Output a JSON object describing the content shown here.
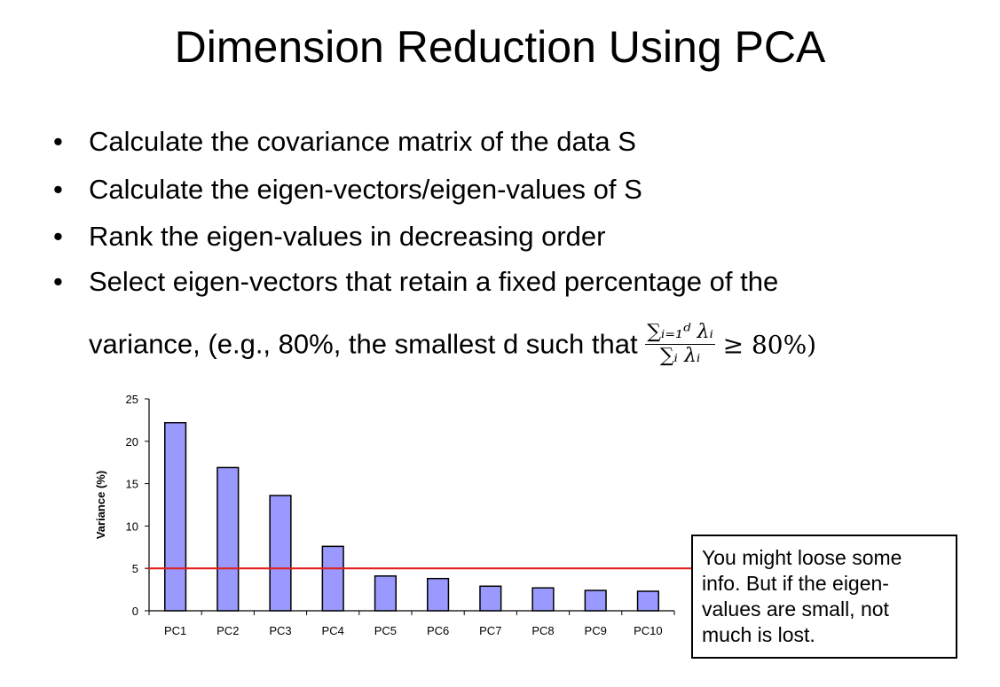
{
  "slide": {
    "title": "Dimension Reduction Using PCA",
    "bullets": [
      "Calculate the covariance matrix of the data S",
      "Calculate the eigen-vectors/eigen-values of S",
      "Rank the eigen-values in decreasing order",
      "Select eigen-vectors that retain a fixed percentage of the"
    ],
    "bullet_symbol": "•",
    "continuation": "variance, (e.g., 80%, the smallest d such that",
    "formula": {
      "numerator": "∑ᵢ₌₁ᵈ λᵢ",
      "denominator": "∑ᵢ λᵢ",
      "relation": "≥ 80%)"
    },
    "note": [
      "You might loose some",
      "info. But if the eigen-",
      "values are small, not",
      "much is lost."
    ]
  },
  "chart_data": {
    "type": "bar",
    "categories": [
      "PC1",
      "PC2",
      "PC3",
      "PC4",
      "PC5",
      "PC6",
      "PC7",
      "PC8",
      "PC9",
      "PC10"
    ],
    "values": [
      22.2,
      16.9,
      13.6,
      7.6,
      4.1,
      3.8,
      2.9,
      2.7,
      2.4,
      2.3
    ],
    "ylabel": "Variance (%)",
    "xlabel": "",
    "ylim": [
      0,
      25
    ],
    "yticks": [
      0,
      5,
      10,
      15,
      20,
      25
    ],
    "threshold": 5,
    "grid": false,
    "colors": {
      "bar": "#9999ff",
      "bar_stroke": "#000000",
      "threshold_line": "#e02020"
    }
  }
}
